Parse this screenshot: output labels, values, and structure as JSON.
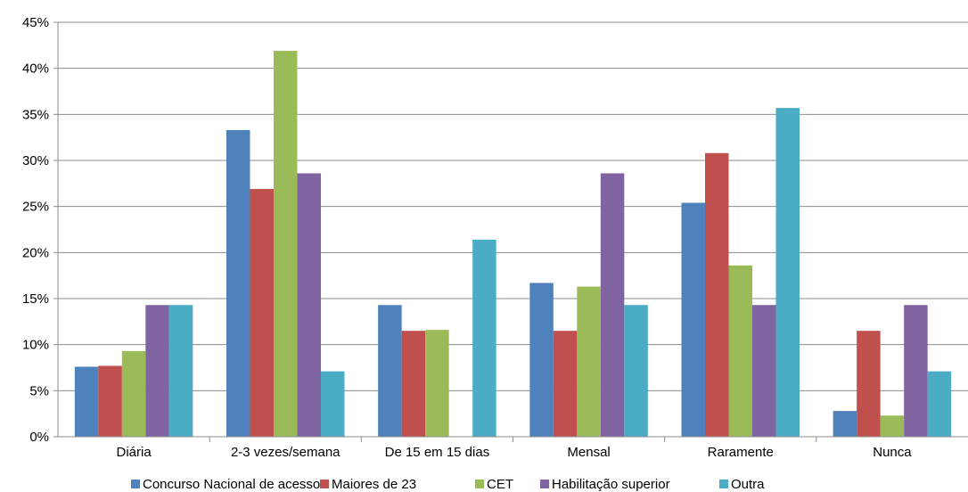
{
  "chart_data": {
    "type": "bar",
    "categories": [
      "Diária",
      "2-3 vezes/semana",
      "De 15 em 15 dias",
      "Mensal",
      "Raramente",
      "Nunca"
    ],
    "yticks": [
      "0%",
      "5%",
      "10%",
      "15%",
      "20%",
      "25%",
      "30%",
      "35%",
      "40%",
      "45%"
    ],
    "ylim": [
      0,
      45
    ],
    "grid": true,
    "legend_position": "bottom",
    "series": [
      {
        "name": "Concurso Nacional de acesso",
        "color": "#4F81BD",
        "values": [
          7.6,
          33.3,
          14.3,
          16.7,
          25.4,
          2.8
        ]
      },
      {
        "name": "Maiores de 23",
        "color": "#C0504D",
        "values": [
          7.7,
          26.9,
          11.5,
          11.5,
          30.8,
          11.5
        ]
      },
      {
        "name": "CET",
        "color": "#9BBB59",
        "values": [
          9.3,
          41.9,
          11.6,
          16.3,
          18.6,
          2.3
        ]
      },
      {
        "name": "Habilitação superior",
        "color": "#8064A2",
        "values": [
          14.3,
          28.6,
          0,
          28.6,
          14.3,
          14.3
        ]
      },
      {
        "name": "Outra",
        "color": "#4BACC6",
        "values": [
          14.3,
          7.1,
          21.4,
          14.3,
          35.7,
          7.1
        ]
      }
    ]
  }
}
